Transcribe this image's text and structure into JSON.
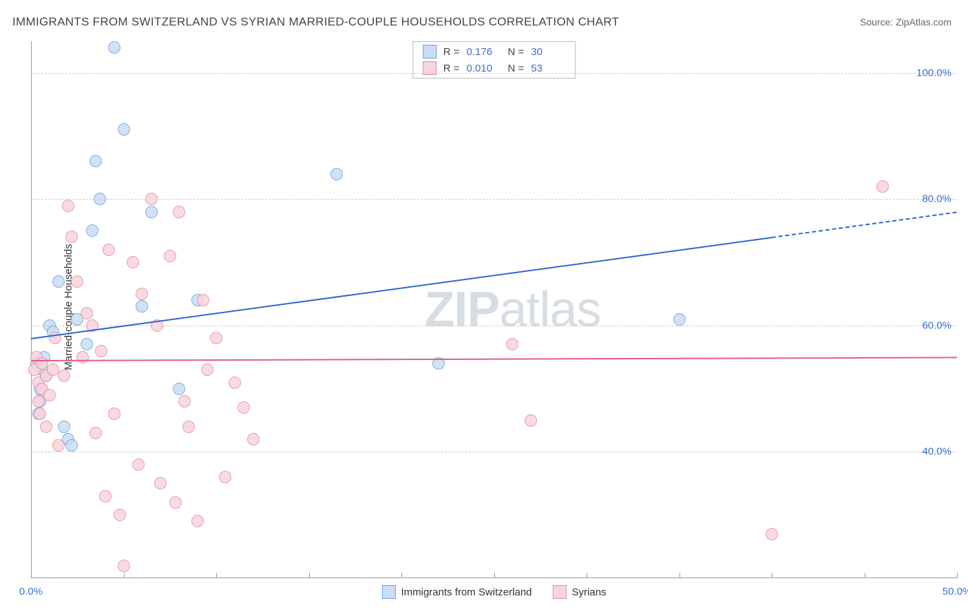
{
  "title": "IMMIGRANTS FROM SWITZERLAND VS SYRIAN MARRIED-COUPLE HOUSEHOLDS CORRELATION CHART",
  "source": "Source: ZipAtlas.com",
  "ylabel": "Married-couple Households",
  "watermark_bold": "ZIP",
  "watermark_rest": "atlas",
  "chart": {
    "type": "scatter",
    "xlim": [
      0,
      50
    ],
    "ylim": [
      20,
      105
    ],
    "xtick_labels": [
      "0.0%",
      "50.0%"
    ],
    "xtick_positions": [
      0,
      50
    ],
    "xtick_minor": [
      5,
      10,
      15,
      20,
      25,
      30,
      35,
      40,
      45
    ],
    "ytick_labels": [
      "40.0%",
      "60.0%",
      "80.0%",
      "100.0%"
    ],
    "ytick_positions": [
      40,
      60,
      80,
      100
    ],
    "grid_color": "#cccccc",
    "axis_color": "#999999",
    "background": "#ffffff",
    "series": [
      {
        "name": "Immigrants from Switzerland",
        "fill": "#c9ddf3",
        "stroke": "#6a9fe0",
        "r": 8,
        "opacity": 0.85,
        "R": "0.176",
        "N": "30",
        "trend": {
          "color": "#2f63d6",
          "y0": 58,
          "y1": 78,
          "x_solid_end": 40
        },
        "points": [
          [
            0.3,
            54
          ],
          [
            0.4,
            46
          ],
          [
            0.5,
            50
          ],
          [
            0.5,
            48
          ],
          [
            0.6,
            53
          ],
          [
            0.7,
            55
          ],
          [
            0.8,
            52
          ],
          [
            1.0,
            60
          ],
          [
            1.2,
            59
          ],
          [
            1.5,
            67
          ],
          [
            1.8,
            44
          ],
          [
            2.0,
            42
          ],
          [
            2.2,
            41
          ],
          [
            2.5,
            61
          ],
          [
            3.0,
            57
          ],
          [
            3.3,
            75
          ],
          [
            3.5,
            86
          ],
          [
            3.7,
            80
          ],
          [
            4.5,
            104
          ],
          [
            5.0,
            91
          ],
          [
            6.0,
            63
          ],
          [
            6.5,
            78
          ],
          [
            8.0,
            50
          ],
          [
            9.0,
            64
          ],
          [
            16.5,
            84
          ],
          [
            22.0,
            54
          ],
          [
            35.0,
            61
          ]
        ]
      },
      {
        "name": "Syrians",
        "fill": "#f7d5dc",
        "stroke": "#e48aa2",
        "r": 8,
        "opacity": 0.85,
        "R": "0.010",
        "N": "53",
        "trend": {
          "color": "#e35d84",
          "y0": 54.5,
          "y1": 55.0,
          "x_solid_end": 50
        },
        "points": [
          [
            0.2,
            53
          ],
          [
            0.3,
            55
          ],
          [
            0.4,
            48
          ],
          [
            0.4,
            51
          ],
          [
            0.5,
            46
          ],
          [
            0.6,
            54
          ],
          [
            0.6,
            50
          ],
          [
            0.8,
            44
          ],
          [
            0.8,
            52
          ],
          [
            1.0,
            49
          ],
          [
            1.2,
            53
          ],
          [
            1.3,
            58
          ],
          [
            1.5,
            41
          ],
          [
            1.8,
            52
          ],
          [
            2.0,
            79
          ],
          [
            2.2,
            74
          ],
          [
            2.5,
            67
          ],
          [
            2.8,
            55
          ],
          [
            3.0,
            62
          ],
          [
            3.3,
            60
          ],
          [
            3.5,
            43
          ],
          [
            3.8,
            56
          ],
          [
            4.0,
            33
          ],
          [
            4.2,
            72
          ],
          [
            4.5,
            46
          ],
          [
            4.8,
            30
          ],
          [
            5.0,
            22
          ],
          [
            5.5,
            70
          ],
          [
            5.8,
            38
          ],
          [
            6.0,
            65
          ],
          [
            6.5,
            80
          ],
          [
            6.8,
            60
          ],
          [
            7.0,
            35
          ],
          [
            7.5,
            71
          ],
          [
            7.8,
            32
          ],
          [
            8.0,
            78
          ],
          [
            8.3,
            48
          ],
          [
            8.5,
            44
          ],
          [
            9.0,
            29
          ],
          [
            9.3,
            64
          ],
          [
            9.5,
            53
          ],
          [
            10.0,
            58
          ],
          [
            10.5,
            36
          ],
          [
            11.0,
            51
          ],
          [
            11.5,
            47
          ],
          [
            12.0,
            42
          ],
          [
            26.0,
            57
          ],
          [
            27.0,
            45
          ],
          [
            40.0,
            27
          ],
          [
            46.0,
            82
          ]
        ]
      }
    ],
    "legend_bottom": [
      {
        "label": "Immigrants from Switzerland",
        "fill": "#c9ddf3",
        "stroke": "#6a9fe0"
      },
      {
        "label": "Syrians",
        "fill": "#f7d5dc",
        "stroke": "#e48aa2"
      }
    ]
  }
}
